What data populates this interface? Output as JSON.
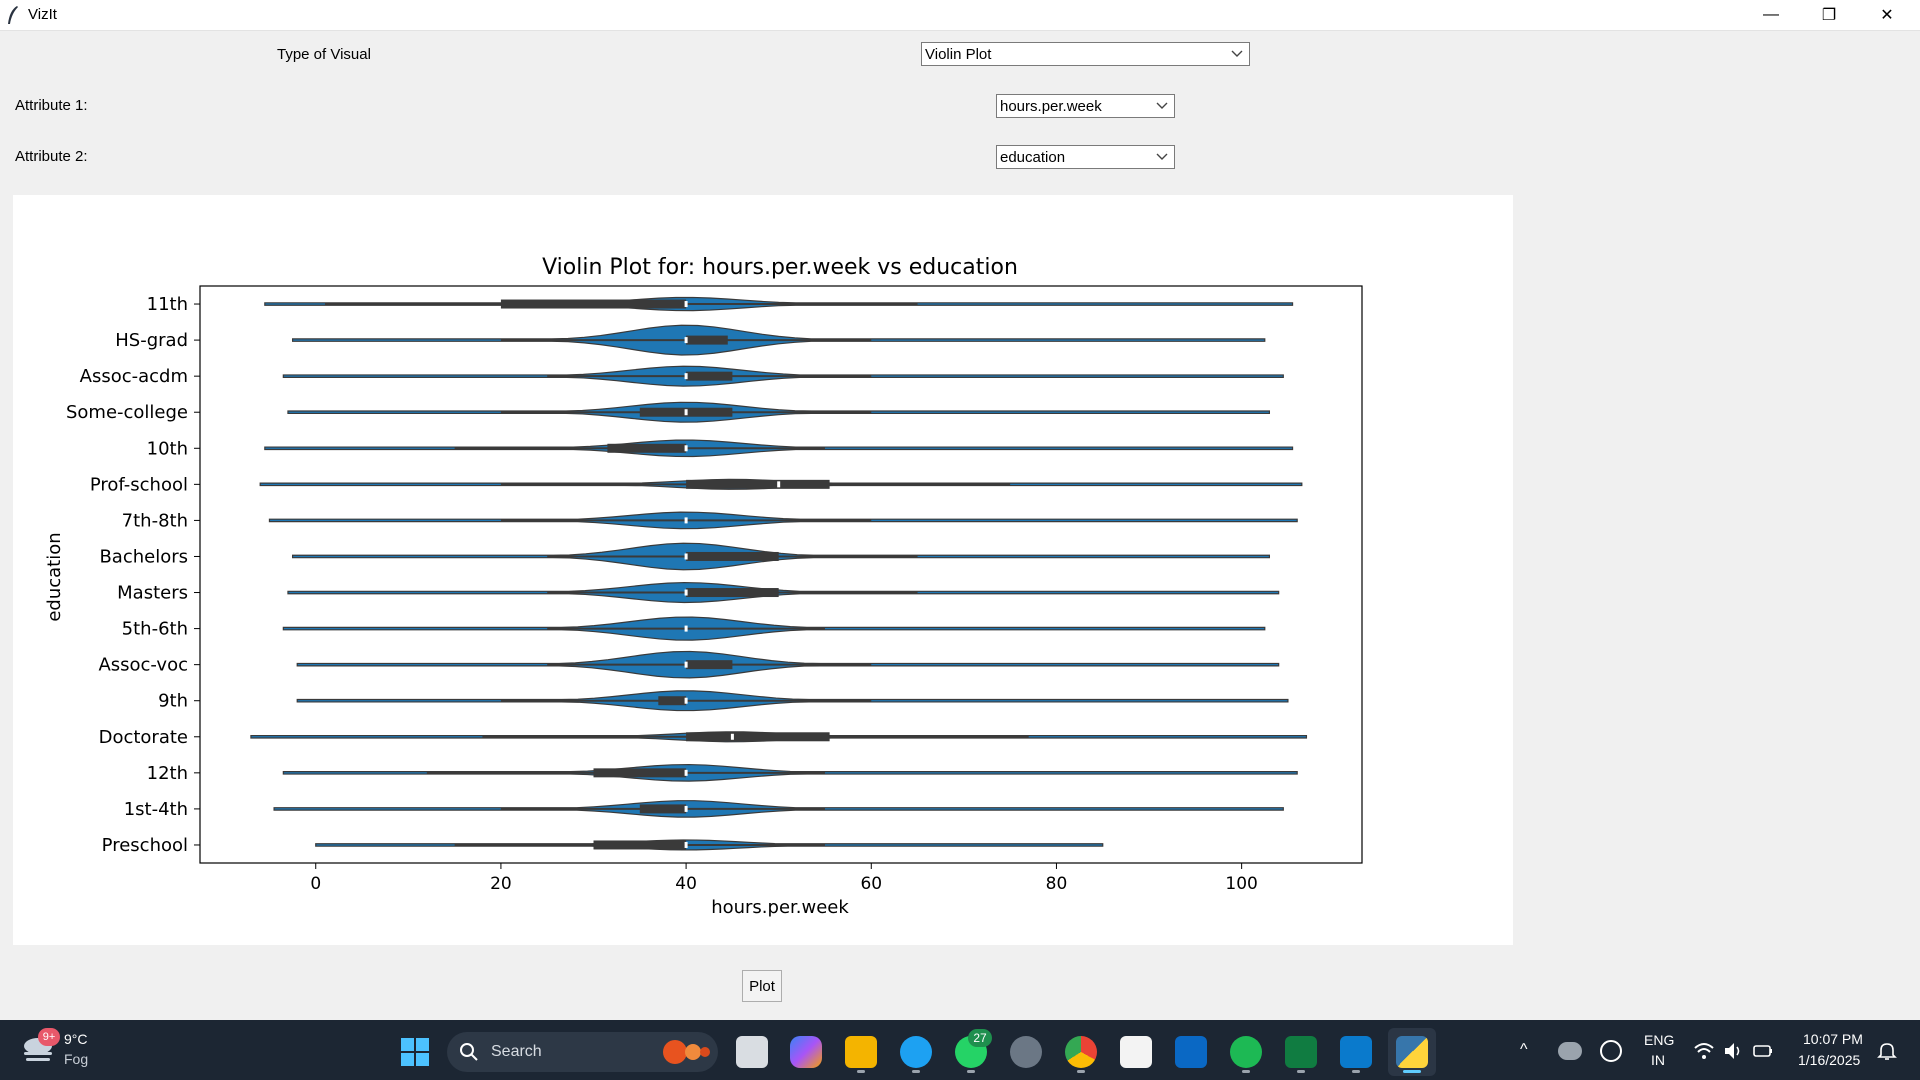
{
  "window": {
    "title": "VizIt",
    "minimize_glyph": "—",
    "maximize_glyph": "❐",
    "close_glyph": "✕"
  },
  "form": {
    "visual_label": "Type of Visual",
    "visual_value": "Violin Plot",
    "attr1_label": "Attribute 1:",
    "attr1_value": "hours.per.week",
    "attr2_label": "Attribute 2:",
    "attr2_value": "education",
    "plot_button": "Plot"
  },
  "chart_data": {
    "type": "violin",
    "orientation": "horizontal",
    "title": "Violin Plot for: hours.per.week vs education",
    "xlabel": "hours.per.week",
    "ylabel": "education",
    "xlim": [
      -12.5,
      113
    ],
    "xticks": [
      0,
      20,
      40,
      60,
      80,
      100
    ],
    "color": "#1f77b4",
    "categories": [
      "11th",
      "HS-grad",
      "Assoc-acdm",
      "Some-college",
      "10th",
      "Prof-school",
      "7th-8th",
      "Bachelors",
      "Masters",
      "5th-6th",
      "Assoc-voc",
      "9th",
      "Doctorate",
      "12th",
      "1st-4th",
      "Preschool"
    ],
    "series": [
      {
        "name": "11th",
        "min": -5.5,
        "max": 105.5,
        "q1": 20,
        "median": 40,
        "q3": 40,
        "wlow": 1,
        "whigh": 65,
        "peak": 40,
        "width": 0.4
      },
      {
        "name": "HS-grad",
        "min": -2.5,
        "max": 102.5,
        "q1": 40,
        "median": 40,
        "q3": 44.5,
        "wlow": 20,
        "whigh": 60,
        "peak": 40,
        "width": 0.9
      },
      {
        "name": "Assoc-acdm",
        "min": -3.5,
        "max": 104.5,
        "q1": 40,
        "median": 40,
        "q3": 45,
        "wlow": 25,
        "whigh": 60,
        "peak": 40,
        "width": 0.6
      },
      {
        "name": "Some-college",
        "min": -3,
        "max": 103,
        "q1": 35,
        "median": 40,
        "q3": 45,
        "wlow": 20,
        "whigh": 60,
        "peak": 40,
        "width": 0.6
      },
      {
        "name": "10th",
        "min": -5.5,
        "max": 105.5,
        "q1": 31.5,
        "median": 40,
        "q3": 40,
        "wlow": 15,
        "whigh": 55,
        "peak": 40,
        "width": 0.5
      },
      {
        "name": "Prof-school",
        "min": -6,
        "max": 106.5,
        "q1": 40,
        "median": 50,
        "q3": 55.5,
        "wlow": 20,
        "whigh": 75,
        "peak": 45,
        "width": 0.3
      },
      {
        "name": "7th-8th",
        "min": -5,
        "max": 106,
        "q1": 40,
        "median": 40,
        "q3": 40,
        "wlow": 20,
        "whigh": 60,
        "peak": 40,
        "width": 0.5
      },
      {
        "name": "Bachelors",
        "min": -2.5,
        "max": 103,
        "q1": 40,
        "median": 40,
        "q3": 50,
        "wlow": 25,
        "whigh": 65,
        "peak": 40,
        "width": 0.8
      },
      {
        "name": "Masters",
        "min": -3,
        "max": 104,
        "q1": 40,
        "median": 40,
        "q3": 50,
        "wlow": 25,
        "whigh": 65,
        "peak": 40,
        "width": 0.6
      },
      {
        "name": "5th-6th",
        "min": -3.5,
        "max": 102.5,
        "q1": 40,
        "median": 40,
        "q3": 40,
        "wlow": 25,
        "whigh": 55,
        "peak": 40,
        "width": 0.7
      },
      {
        "name": "Assoc-voc",
        "min": -2,
        "max": 104,
        "q1": 40,
        "median": 40,
        "q3": 45,
        "wlow": 25,
        "whigh": 60,
        "peak": 40,
        "width": 0.8
      },
      {
        "name": "9th",
        "min": -2,
        "max": 105,
        "q1": 37,
        "median": 40,
        "q3": 40,
        "wlow": 20,
        "whigh": 60,
        "peak": 40,
        "width": 0.6
      },
      {
        "name": "Doctorate",
        "min": -7,
        "max": 107,
        "q1": 40,
        "median": 45,
        "q3": 55.5,
        "wlow": 18,
        "whigh": 77,
        "peak": 45,
        "width": 0.3
      },
      {
        "name": "12th",
        "min": -3.5,
        "max": 106,
        "q1": 30,
        "median": 40,
        "q3": 40,
        "wlow": 12,
        "whigh": 55,
        "peak": 40,
        "width": 0.5
      },
      {
        "name": "1st-4th",
        "min": -4.5,
        "max": 104.5,
        "q1": 35,
        "median": 40,
        "q3": 40,
        "wlow": 20,
        "whigh": 55,
        "peak": 40,
        "width": 0.5
      },
      {
        "name": "Preschool",
        "min": 0,
        "max": 85,
        "q1": 30,
        "median": 40,
        "q3": 40,
        "wlow": 15,
        "whigh": 55,
        "peak": 40,
        "width": 0.3
      }
    ]
  },
  "taskbar": {
    "weather_temp": "9°C",
    "weather_desc": "Fog",
    "weather_badge": "9+",
    "search_placeholder": "Search",
    "whatsapp_badge": "27",
    "lang_top": "ENG",
    "lang_bottom": "IN",
    "time": "10:07 PM",
    "date": "1/16/2025",
    "icons": [
      "start-icon",
      "task-view-icon",
      "copilot-icon",
      "file-explorer-icon",
      "edge-icon",
      "whatsapp-icon",
      "settings-icon",
      "chrome-icon",
      "store-icon",
      "news-icon",
      "spotify-icon",
      "excel-icon",
      "vscode-icon",
      "python-icon"
    ],
    "colors": {
      "accent": "#60cdff",
      "background": "#1c2633",
      "violin": "#1f77b4"
    }
  }
}
